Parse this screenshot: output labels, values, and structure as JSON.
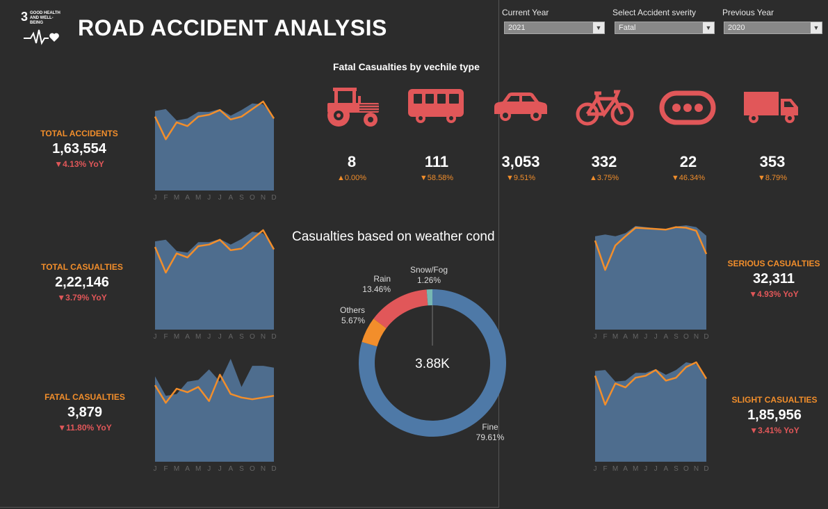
{
  "header": {
    "title": "ROAD ACCIDENT ANALYSIS",
    "logo": {
      "number": "3",
      "line1": "GOOD HEALTH",
      "line2": "AND WELL-BEING",
      "icon": "heartbeat-icon"
    }
  },
  "filters": {
    "current_year": {
      "label": "Current Year",
      "value": "2021"
    },
    "severity": {
      "label": "Select Accident sverity",
      "value": "Fatal"
    },
    "previous_year": {
      "label": "Previous Year",
      "value": "2020"
    },
    "arrow": "▼"
  },
  "colors": {
    "area": "#4e6d8e",
    "line": "#f28e2b",
    "red": "#e15759",
    "blue": "#4e79a7",
    "orange": "#f28e2b",
    "teal": "#76b7b2",
    "bg": "#2c2c2c"
  },
  "kpis": {
    "total_accidents": {
      "label": "TOTAL ACCIDENTS",
      "value": "1,63,554",
      "yoy": "▼4.13% YoY"
    },
    "total_casualties": {
      "label": "TOTAL CASUALTIES",
      "value": "2,22,146",
      "yoy": "▼3.79%  YoY"
    },
    "fatal_casualties": {
      "label": "FATAL CASUALTIES",
      "value": "3,879",
      "yoy": "▼11.80%  YoY"
    },
    "serious_casualties": {
      "label": "SERIOUS CASUALTIES",
      "value": "32,311",
      "yoy": "▼4.93%  YoY"
    },
    "slight_casualties": {
      "label": "SLIGHT CASUALTIES",
      "value": "1,85,956",
      "yoy": "▼3.41%  YoY"
    }
  },
  "vehicles": {
    "title": "Fatal  Casualties  by vechile type",
    "items": [
      {
        "icon": "tractor-icon",
        "value": "8",
        "delta": "▲0.00%"
      },
      {
        "icon": "bus-icon",
        "value": "111",
        "delta": "▼58.58%"
      },
      {
        "icon": "car-icon",
        "value": "3,053",
        "delta": "▼9.51%"
      },
      {
        "icon": "bicycle-icon",
        "value": "332",
        "delta": "▲3.75%"
      },
      {
        "icon": "more-icon",
        "value": "22",
        "delta": "▼46.34%"
      },
      {
        "icon": "truck-icon",
        "value": "353",
        "delta": "▼8.79%"
      }
    ]
  },
  "chart_data": [
    {
      "type": "area",
      "id": "accidents",
      "categories": [
        "J",
        "F",
        "M",
        "A",
        "M",
        "J",
        "J",
        "A",
        "S",
        "O",
        "N",
        "D"
      ],
      "series": [
        {
          "values": [
            14400,
            14600,
            13400,
            13600,
            14300,
            14300,
            14600,
            13900,
            14500,
            15200,
            15100,
            13700
          ]
        },
        {
          "values": [
            13800,
            11400,
            13200,
            12800,
            13800,
            14000,
            14500,
            13500,
            13800,
            14600,
            15400,
            13600
          ]
        }
      ]
    },
    {
      "type": "area",
      "id": "casualties",
      "categories": [
        "J",
        "F",
        "M",
        "A",
        "M",
        "J",
        "J",
        "A",
        "S",
        "O",
        "N",
        "D"
      ],
      "series": [
        {
          "values": [
            19100,
            19300,
            17900,
            17700,
            19000,
            19000,
            19400,
            18700,
            19400,
            20300,
            20100,
            18300
          ]
        },
        {
          "values": [
            18400,
            15200,
            17600,
            17100,
            18500,
            18700,
            19300,
            18000,
            18200,
            19400,
            20500,
            18100
          ]
        }
      ]
    },
    {
      "type": "area",
      "id": "fatal",
      "categories": [
        "J",
        "F",
        "M",
        "A",
        "M",
        "J",
        "J",
        "A",
        "S",
        "O",
        "N",
        "D"
      ],
      "series": [
        {
          "values": [
            370,
            315,
            320,
            355,
            360,
            390,
            355,
            420,
            340,
            400,
            400,
            395
          ]
        },
        {
          "values": [
            345,
            295,
            335,
            325,
            340,
            300,
            375,
            320,
            310,
            305,
            310,
            315
          ]
        }
      ]
    },
    {
      "type": "area",
      "id": "serious",
      "categories": [
        "J",
        "F",
        "M",
        "A",
        "M",
        "J",
        "J",
        "A",
        "S",
        "O",
        "N",
        "D"
      ],
      "series": [
        {
          "values": [
            2850,
            2880,
            2850,
            2900,
            3020,
            3000,
            2980,
            2970,
            3010,
            3030,
            3000,
            2860
          ]
        },
        {
          "values": [
            2780,
            2300,
            2700,
            2850,
            2990,
            2980,
            2970,
            2960,
            3000,
            2990,
            2940,
            2560
          ]
        }
      ]
    },
    {
      "type": "area",
      "id": "slight",
      "categories": [
        "J",
        "F",
        "M",
        "A",
        "M",
        "J",
        "J",
        "A",
        "S",
        "O",
        "N",
        "D"
      ],
      "series": [
        {
          "values": [
            16000,
            16100,
            14900,
            15000,
            15800,
            15800,
            16200,
            15600,
            16100,
            16900,
            16700,
            15200
          ]
        },
        {
          "values": [
            15500,
            12500,
            14700,
            14300,
            15300,
            15500,
            16100,
            15000,
            15300,
            16400,
            16900,
            15200
          ]
        }
      ]
    },
    {
      "type": "pie",
      "id": "weather",
      "title": "Casualties based on weather cond",
      "center_label": "3.88K",
      "slices": [
        {
          "label": "Fine",
          "value": 79.61,
          "text": "79.61%",
          "color": "#4e79a7"
        },
        {
          "label": "Others",
          "value": 5.67,
          "text": "5.67%",
          "color": "#f28e2b"
        },
        {
          "label": "Rain",
          "value": 13.46,
          "text": "13.46%",
          "color": "#e15759"
        },
        {
          "label": "Snow/Fog",
          "value": 1.26,
          "text": "1.26%",
          "color": "#76b7b2"
        }
      ]
    }
  ]
}
